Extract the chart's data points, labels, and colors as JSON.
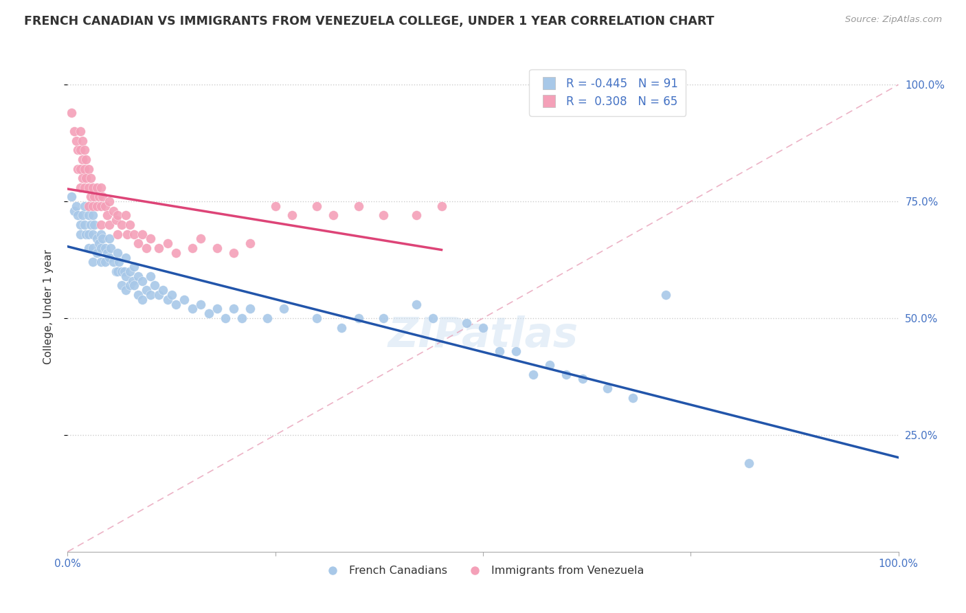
{
  "title": "FRENCH CANADIAN VS IMMIGRANTS FROM VENEZUELA COLLEGE, UNDER 1 YEAR CORRELATION CHART",
  "source_text": "Source: ZipAtlas.com",
  "ylabel": "College, Under 1 year",
  "ylabel_right_ticks": [
    "25.0%",
    "50.0%",
    "75.0%",
    "100.0%"
  ],
  "ylabel_right_vals": [
    0.25,
    0.5,
    0.75,
    1.0
  ],
  "legend_blue_r": "-0.445",
  "legend_blue_n": "91",
  "legend_pink_r": "0.308",
  "legend_pink_n": "65",
  "blue_color": "#a8c8e8",
  "pink_color": "#f4a0b8",
  "blue_line_color": "#2255aa",
  "pink_line_color": "#dd4477",
  "diag_line_color": "#e8b8c8",
  "blue_scatter": [
    [
      0.005,
      0.76
    ],
    [
      0.008,
      0.73
    ],
    [
      0.01,
      0.74
    ],
    [
      0.012,
      0.72
    ],
    [
      0.015,
      0.7
    ],
    [
      0.015,
      0.68
    ],
    [
      0.018,
      0.72
    ],
    [
      0.02,
      0.74
    ],
    [
      0.02,
      0.7
    ],
    [
      0.022,
      0.68
    ],
    [
      0.025,
      0.72
    ],
    [
      0.025,
      0.68
    ],
    [
      0.025,
      0.65
    ],
    [
      0.028,
      0.7
    ],
    [
      0.03,
      0.72
    ],
    [
      0.03,
      0.68
    ],
    [
      0.03,
      0.65
    ],
    [
      0.03,
      0.62
    ],
    [
      0.032,
      0.7
    ],
    [
      0.035,
      0.67
    ],
    [
      0.035,
      0.64
    ],
    [
      0.038,
      0.66
    ],
    [
      0.04,
      0.68
    ],
    [
      0.04,
      0.65
    ],
    [
      0.04,
      0.62
    ],
    [
      0.042,
      0.67
    ],
    [
      0.045,
      0.65
    ],
    [
      0.045,
      0.62
    ],
    [
      0.048,
      0.64
    ],
    [
      0.05,
      0.67
    ],
    [
      0.05,
      0.63
    ],
    [
      0.052,
      0.65
    ],
    [
      0.055,
      0.62
    ],
    [
      0.058,
      0.6
    ],
    [
      0.06,
      0.64
    ],
    [
      0.06,
      0.6
    ],
    [
      0.062,
      0.62
    ],
    [
      0.065,
      0.6
    ],
    [
      0.065,
      0.57
    ],
    [
      0.068,
      0.6
    ],
    [
      0.07,
      0.63
    ],
    [
      0.07,
      0.59
    ],
    [
      0.07,
      0.56
    ],
    [
      0.075,
      0.6
    ],
    [
      0.075,
      0.57
    ],
    [
      0.078,
      0.58
    ],
    [
      0.08,
      0.61
    ],
    [
      0.08,
      0.57
    ],
    [
      0.085,
      0.59
    ],
    [
      0.085,
      0.55
    ],
    [
      0.09,
      0.58
    ],
    [
      0.09,
      0.54
    ],
    [
      0.095,
      0.56
    ],
    [
      0.1,
      0.59
    ],
    [
      0.1,
      0.55
    ],
    [
      0.105,
      0.57
    ],
    [
      0.11,
      0.55
    ],
    [
      0.115,
      0.56
    ],
    [
      0.12,
      0.54
    ],
    [
      0.125,
      0.55
    ],
    [
      0.13,
      0.53
    ],
    [
      0.14,
      0.54
    ],
    [
      0.15,
      0.52
    ],
    [
      0.16,
      0.53
    ],
    [
      0.17,
      0.51
    ],
    [
      0.18,
      0.52
    ],
    [
      0.19,
      0.5
    ],
    [
      0.2,
      0.52
    ],
    [
      0.21,
      0.5
    ],
    [
      0.22,
      0.52
    ],
    [
      0.24,
      0.5
    ],
    [
      0.26,
      0.52
    ],
    [
      0.3,
      0.5
    ],
    [
      0.33,
      0.48
    ],
    [
      0.35,
      0.5
    ],
    [
      0.38,
      0.5
    ],
    [
      0.42,
      0.53
    ],
    [
      0.44,
      0.5
    ],
    [
      0.48,
      0.49
    ],
    [
      0.5,
      0.48
    ],
    [
      0.52,
      0.43
    ],
    [
      0.54,
      0.43
    ],
    [
      0.56,
      0.38
    ],
    [
      0.58,
      0.4
    ],
    [
      0.6,
      0.38
    ],
    [
      0.62,
      0.37
    ],
    [
      0.65,
      0.35
    ],
    [
      0.68,
      0.33
    ],
    [
      0.72,
      0.55
    ],
    [
      0.82,
      0.19
    ]
  ],
  "pink_scatter": [
    [
      0.005,
      0.94
    ],
    [
      0.008,
      0.9
    ],
    [
      0.01,
      0.88
    ],
    [
      0.012,
      0.86
    ],
    [
      0.012,
      0.82
    ],
    [
      0.015,
      0.9
    ],
    [
      0.015,
      0.86
    ],
    [
      0.015,
      0.82
    ],
    [
      0.015,
      0.78
    ],
    [
      0.018,
      0.88
    ],
    [
      0.018,
      0.84
    ],
    [
      0.018,
      0.8
    ],
    [
      0.02,
      0.86
    ],
    [
      0.02,
      0.82
    ],
    [
      0.02,
      0.78
    ],
    [
      0.022,
      0.84
    ],
    [
      0.022,
      0.8
    ],
    [
      0.025,
      0.82
    ],
    [
      0.025,
      0.78
    ],
    [
      0.025,
      0.74
    ],
    [
      0.028,
      0.8
    ],
    [
      0.028,
      0.76
    ],
    [
      0.03,
      0.78
    ],
    [
      0.03,
      0.74
    ],
    [
      0.032,
      0.76
    ],
    [
      0.035,
      0.78
    ],
    [
      0.035,
      0.74
    ],
    [
      0.038,
      0.76
    ],
    [
      0.04,
      0.78
    ],
    [
      0.04,
      0.74
    ],
    [
      0.04,
      0.7
    ],
    [
      0.042,
      0.76
    ],
    [
      0.045,
      0.74
    ],
    [
      0.048,
      0.72
    ],
    [
      0.05,
      0.75
    ],
    [
      0.05,
      0.7
    ],
    [
      0.055,
      0.73
    ],
    [
      0.058,
      0.71
    ],
    [
      0.06,
      0.72
    ],
    [
      0.06,
      0.68
    ],
    [
      0.065,
      0.7
    ],
    [
      0.07,
      0.72
    ],
    [
      0.072,
      0.68
    ],
    [
      0.075,
      0.7
    ],
    [
      0.08,
      0.68
    ],
    [
      0.085,
      0.66
    ],
    [
      0.09,
      0.68
    ],
    [
      0.095,
      0.65
    ],
    [
      0.1,
      0.67
    ],
    [
      0.11,
      0.65
    ],
    [
      0.12,
      0.66
    ],
    [
      0.13,
      0.64
    ],
    [
      0.15,
      0.65
    ],
    [
      0.16,
      0.67
    ],
    [
      0.18,
      0.65
    ],
    [
      0.2,
      0.64
    ],
    [
      0.22,
      0.66
    ],
    [
      0.25,
      0.74
    ],
    [
      0.27,
      0.72
    ],
    [
      0.3,
      0.74
    ],
    [
      0.32,
      0.72
    ],
    [
      0.35,
      0.74
    ],
    [
      0.38,
      0.72
    ],
    [
      0.42,
      0.72
    ],
    [
      0.45,
      0.74
    ]
  ],
  "xlim": [
    0,
    1.0
  ],
  "ylim": [
    0,
    1.05
  ],
  "figsize": [
    14.06,
    8.92
  ],
  "dpi": 100
}
